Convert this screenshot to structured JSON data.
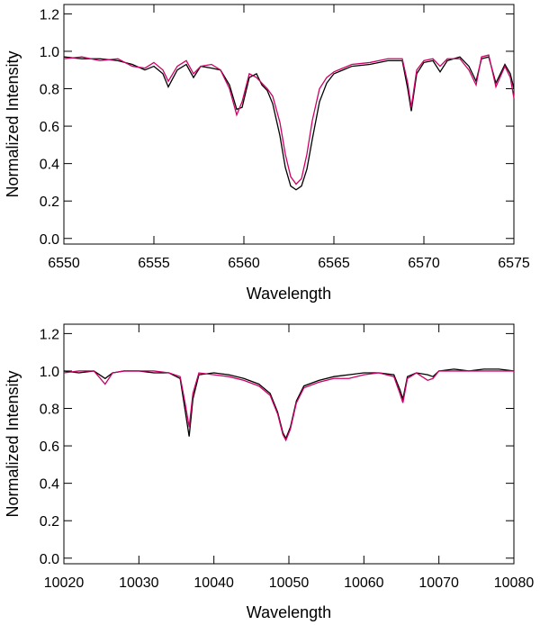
{
  "chart_data": [
    {
      "type": "line",
      "xlabel": "Wavelength",
      "ylabel": "Normalized Intensity",
      "xlim": [
        6550,
        6575
      ],
      "ylim": [
        -0.03,
        1.25
      ],
      "xticks": [
        "6550",
        "6555",
        "6560",
        "6565",
        "6570",
        "6575"
      ],
      "yticks": [
        "0.0",
        "0.2",
        "0.4",
        "0.6",
        "0.8",
        "1.0",
        "1.2"
      ],
      "grid": false,
      "colors": {
        "observed": "#000000",
        "model": "#cc0066"
      },
      "series": [
        {
          "x": [
            6550.0,
            6551.0,
            6552.0,
            6553.0,
            6553.8,
            6554.5,
            6555.0,
            6555.5,
            6555.8,
            6556.3,
            6556.8,
            6557.2,
            6557.6,
            6558.2,
            6558.7,
            6559.2,
            6559.6,
            6559.9,
            6560.3,
            6560.7,
            6561.0,
            6561.3,
            6561.6,
            6562.0,
            6562.3,
            6562.6,
            6562.9,
            6563.2,
            6563.5,
            6563.8,
            6564.2,
            6564.6,
            6565.0,
            6565.5,
            6566.0,
            6567.0,
            6568.0,
            6568.8,
            6569.1,
            6569.3,
            6569.6,
            6570.0,
            6570.5,
            6570.9,
            6571.3,
            6572.0,
            6572.5,
            6572.9,
            6573.2,
            6573.6,
            6574.0,
            6574.5,
            6574.8,
            6575.0
          ],
          "values": [
            0.97,
            0.96,
            0.96,
            0.95,
            0.93,
            0.9,
            0.92,
            0.88,
            0.81,
            0.9,
            0.93,
            0.86,
            0.92,
            0.91,
            0.9,
            0.82,
            0.69,
            0.7,
            0.86,
            0.88,
            0.82,
            0.79,
            0.72,
            0.55,
            0.38,
            0.28,
            0.26,
            0.28,
            0.37,
            0.53,
            0.73,
            0.83,
            0.88,
            0.9,
            0.92,
            0.93,
            0.95,
            0.95,
            0.8,
            0.68,
            0.88,
            0.94,
            0.95,
            0.89,
            0.95,
            0.97,
            0.92,
            0.84,
            0.96,
            0.97,
            0.83,
            0.93,
            0.88,
            0.8
          ]
        },
        {
          "x": [
            6550.0,
            6551.0,
            6552.0,
            6553.0,
            6553.8,
            6554.5,
            6555.0,
            6555.5,
            6555.8,
            6556.3,
            6556.8,
            6557.2,
            6557.6,
            6558.2,
            6558.7,
            6559.2,
            6559.6,
            6559.9,
            6560.3,
            6560.7,
            6561.0,
            6561.3,
            6561.6,
            6562.0,
            6562.3,
            6562.6,
            6562.9,
            6563.2,
            6563.5,
            6563.8,
            6564.2,
            6564.6,
            6565.0,
            6565.5,
            6566.0,
            6567.0,
            6568.0,
            6568.8,
            6569.1,
            6569.3,
            6569.6,
            6570.0,
            6570.5,
            6570.9,
            6571.3,
            6572.0,
            6572.5,
            6572.9,
            6573.2,
            6573.6,
            6574.0,
            6574.5,
            6574.8,
            6575.0
          ],
          "values": [
            0.96,
            0.97,
            0.95,
            0.96,
            0.92,
            0.91,
            0.94,
            0.9,
            0.84,
            0.92,
            0.95,
            0.88,
            0.92,
            0.93,
            0.9,
            0.8,
            0.66,
            0.73,
            0.88,
            0.86,
            0.83,
            0.8,
            0.76,
            0.62,
            0.45,
            0.33,
            0.29,
            0.32,
            0.45,
            0.63,
            0.8,
            0.86,
            0.89,
            0.91,
            0.93,
            0.94,
            0.96,
            0.96,
            0.83,
            0.7,
            0.9,
            0.95,
            0.96,
            0.92,
            0.96,
            0.96,
            0.9,
            0.82,
            0.97,
            0.98,
            0.81,
            0.92,
            0.86,
            0.75
          ]
        }
      ]
    },
    {
      "type": "line",
      "xlabel": "Wavelength",
      "ylabel": "Normalized Intensity",
      "xlim": [
        10020,
        10080
      ],
      "ylim": [
        -0.03,
        1.25
      ],
      "xticks": [
        "10020",
        "10030",
        "10040",
        "10050",
        "10060",
        "10070",
        "10080"
      ],
      "yticks": [
        "0.0",
        "0.2",
        "0.4",
        "0.6",
        "0.8",
        "1.0",
        "1.2"
      ],
      "grid": false,
      "colors": {
        "observed": "#000000",
        "model": "#cc0066"
      },
      "series": [
        {
          "x": [
            10020,
            10022,
            10024,
            10025.5,
            10026.5,
            10028,
            10030,
            10032,
            10034,
            10035.5,
            10036.2,
            10036.7,
            10037.2,
            10038,
            10040,
            10042,
            10044,
            10046,
            10047.5,
            10048.5,
            10049.2,
            10049.6,
            10050.2,
            10051,
            10052,
            10054,
            10056,
            10058,
            10060,
            10062,
            10064,
            10064.8,
            10065.2,
            10065.8,
            10067,
            10068.5,
            10069.2,
            10070,
            10072,
            10074,
            10076,
            10078,
            10080
          ],
          "values": [
            1.0,
            0.99,
            1.0,
            0.96,
            0.99,
            1.0,
            1.0,
            0.99,
            0.99,
            0.96,
            0.78,
            0.65,
            0.85,
            0.98,
            0.99,
            0.98,
            0.96,
            0.93,
            0.88,
            0.78,
            0.67,
            0.64,
            0.7,
            0.84,
            0.92,
            0.95,
            0.97,
            0.98,
            0.99,
            0.99,
            0.98,
            0.9,
            0.85,
            0.97,
            0.99,
            0.98,
            0.97,
            1.0,
            1.01,
            1.0,
            1.01,
            1.01,
            1.0
          ]
        },
        {
          "x": [
            10020,
            10022,
            10024,
            10025.5,
            10026.5,
            10028,
            10030,
            10032,
            10034,
            10035.5,
            10036.2,
            10036.7,
            10037.2,
            10038,
            10040,
            10042,
            10044,
            10046,
            10047.5,
            10048.5,
            10049.2,
            10049.6,
            10050.2,
            10051,
            10052,
            10054,
            10056,
            10058,
            10060,
            10062,
            10064,
            10064.8,
            10065.2,
            10065.8,
            10067,
            10068.5,
            10069.2,
            10070,
            10072,
            10074,
            10076,
            10078,
            10080
          ],
          "values": [
            0.99,
            1.0,
            1.0,
            0.93,
            0.99,
            1.0,
            1.0,
            1.0,
            0.99,
            0.97,
            0.82,
            0.7,
            0.88,
            0.99,
            0.98,
            0.97,
            0.95,
            0.92,
            0.87,
            0.77,
            0.66,
            0.63,
            0.69,
            0.83,
            0.91,
            0.94,
            0.96,
            0.96,
            0.98,
            0.99,
            0.97,
            0.88,
            0.83,
            0.96,
            0.99,
            0.95,
            0.96,
            1.0,
            1.0,
            1.0,
            1.0,
            1.0,
            1.0
          ]
        }
      ]
    }
  ]
}
